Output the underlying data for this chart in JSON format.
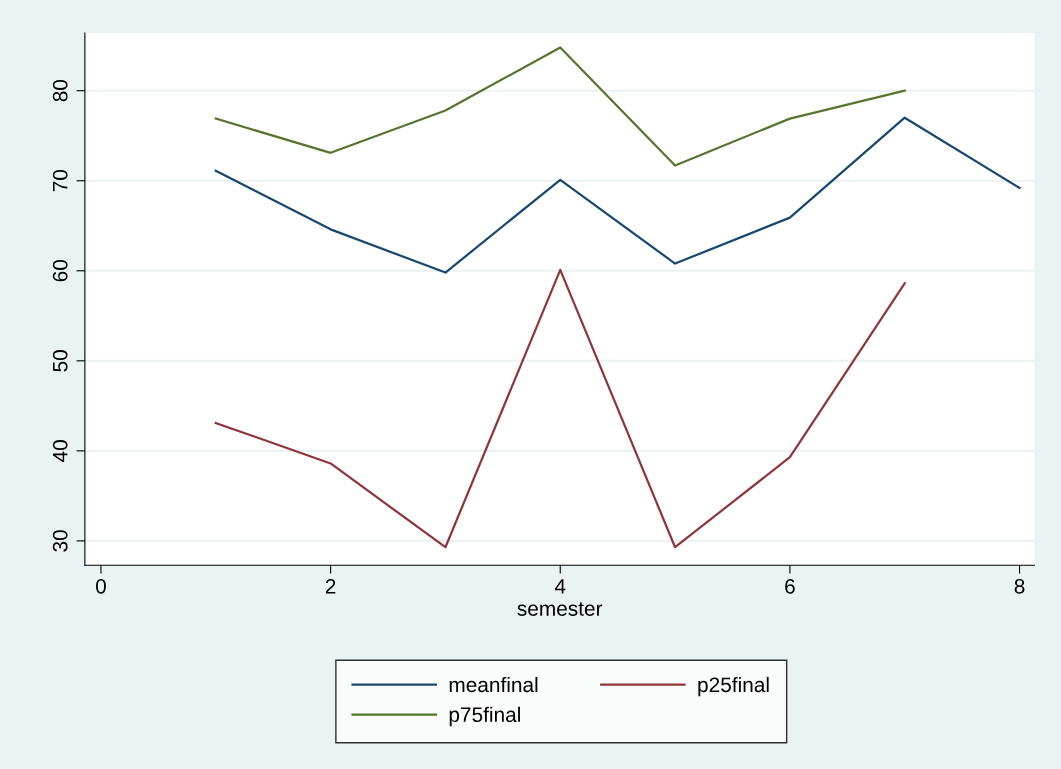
{
  "chart_data": {
    "type": "line",
    "xlabel": "semester",
    "x": [
      1,
      2,
      3,
      4,
      5,
      6,
      7,
      8
    ],
    "series": [
      {
        "name": "meanfinal",
        "color": "#1a476f",
        "values": [
          71.1,
          64.6,
          59.8,
          70.1,
          60.8,
          65.9,
          77.0,
          69.2
        ]
      },
      {
        "name": "p25final",
        "color": "#90353b",
        "values": [
          43.1,
          38.6,
          29.3,
          60.1,
          29.3,
          39.3,
          58.6,
          null
        ]
      },
      {
        "name": "p75final",
        "color": "#55752f",
        "values": [
          76.9,
          73.1,
          77.8,
          84.8,
          71.7,
          76.9,
          80.0,
          null
        ]
      }
    ],
    "xlim": [
      -0.14,
      8.13
    ],
    "ylim": [
      27.3,
      86.4
    ],
    "xticks": [
      0,
      2,
      4,
      6,
      8
    ],
    "yticks": [
      30,
      40,
      50,
      60,
      70,
      80
    ],
    "grid": "y",
    "legend": "bottom",
    "marker": "none",
    "line_style": "solid"
  }
}
